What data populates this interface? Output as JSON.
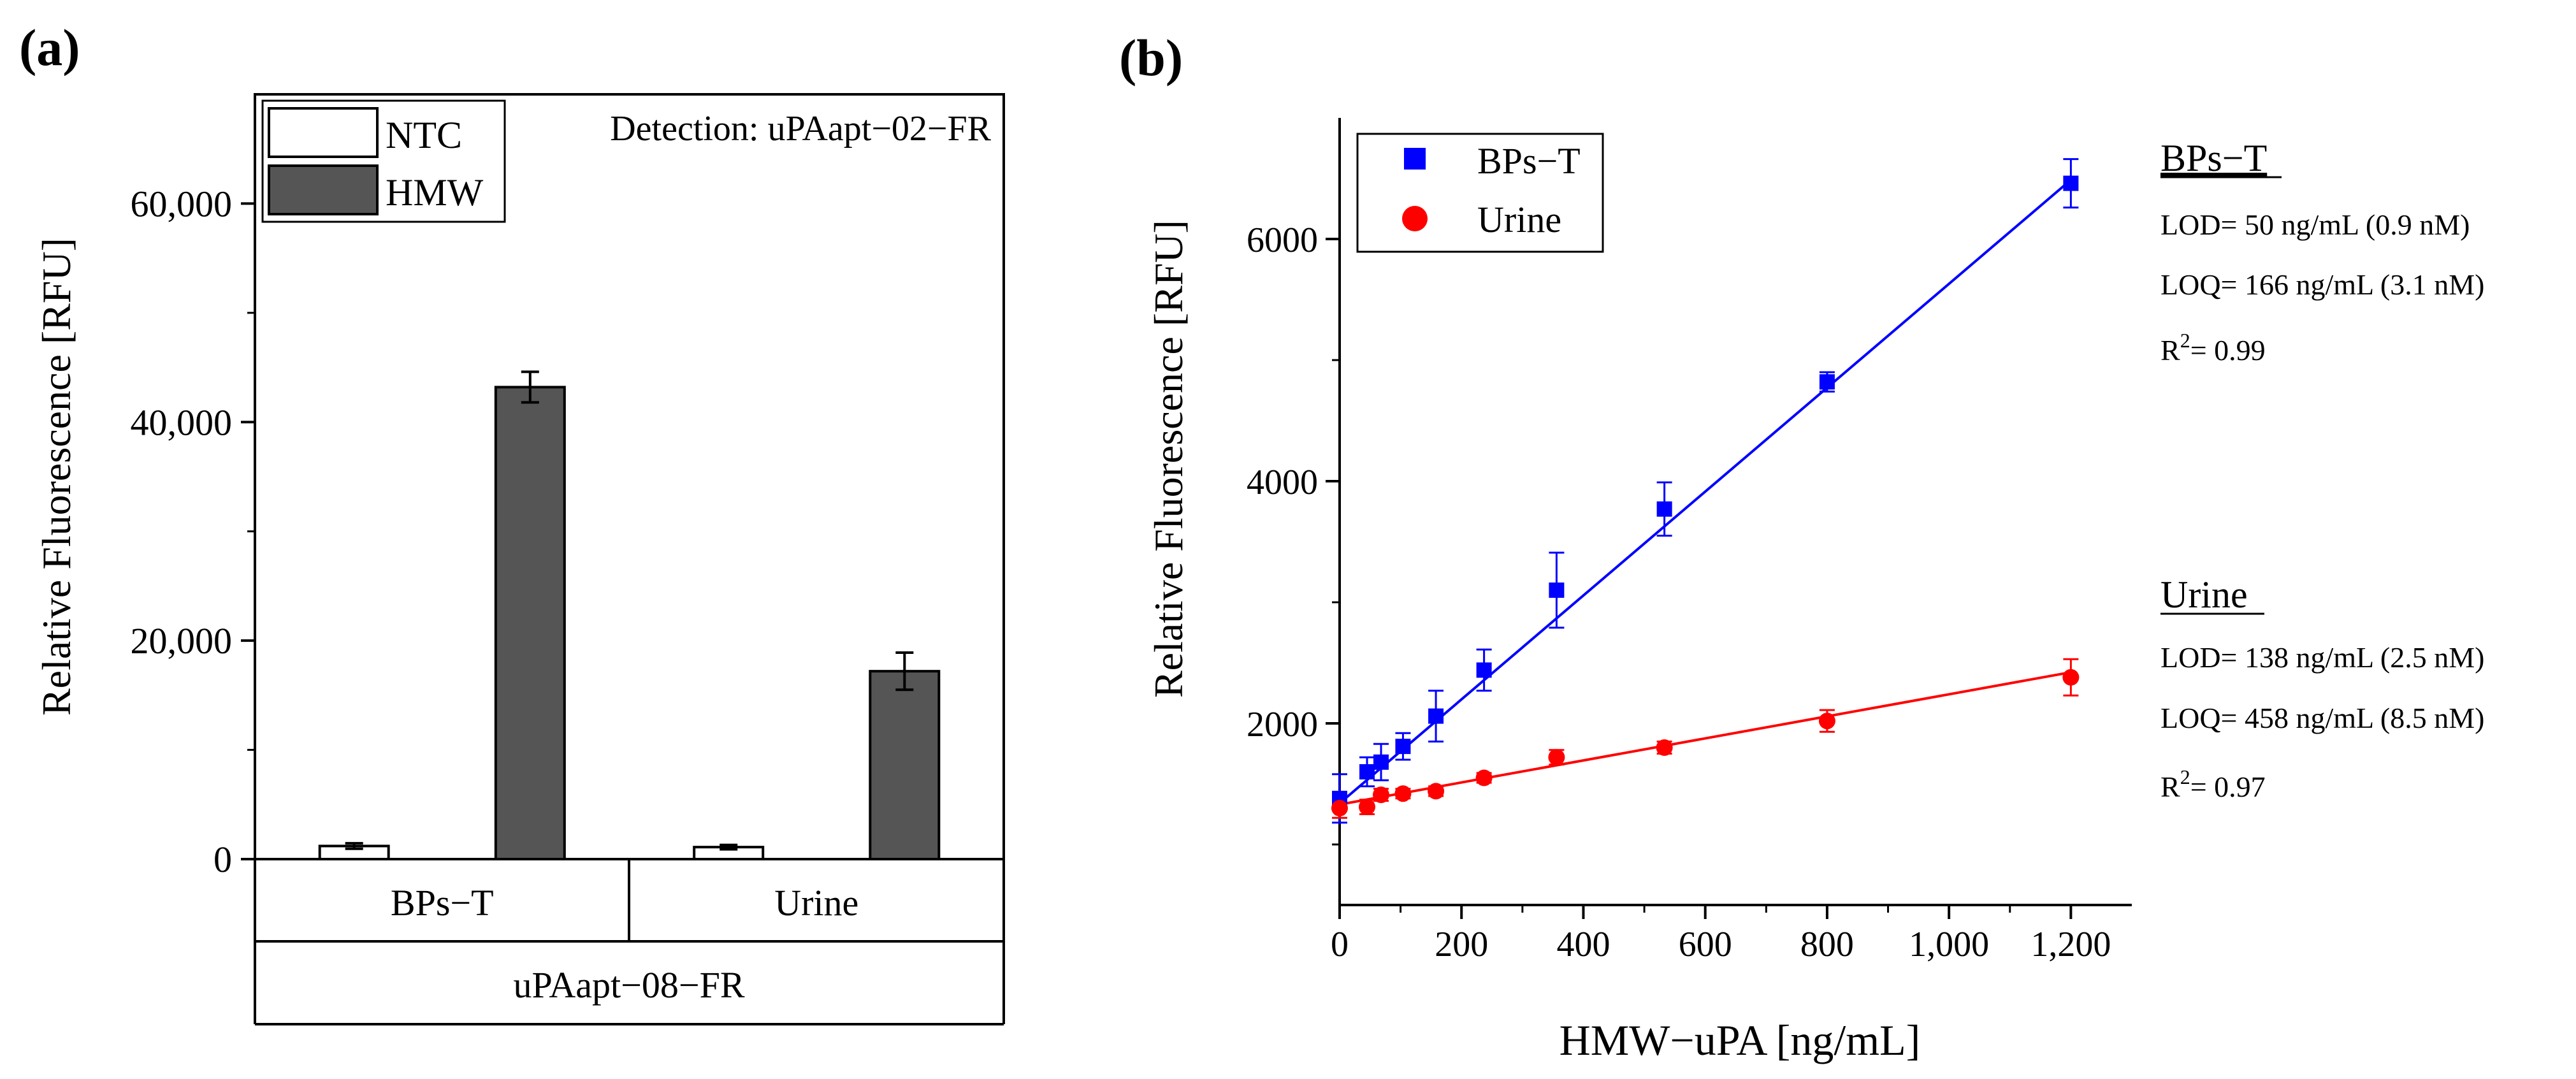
{
  "chart_data": [
    {
      "type": "bar",
      "panel_label": "(a)",
      "title": "",
      "ylabel": "Relative Fluorescence [RFU]",
      "ylim": [
        0,
        70000
      ],
      "yticks": [
        0,
        20000,
        40000,
        60000
      ],
      "ytick_labels": [
        "0",
        "20,000",
        "40,000",
        "60,000"
      ],
      "annotation": "Detection: uPAapt−02−FR",
      "legend_position": "top-left",
      "categories": [
        "BPs−T",
        "Urine"
      ],
      "category_group": "uPAapt−08−FR",
      "series": [
        {
          "name": "NTC",
          "color": "#ffffff",
          "values": [
            1200,
            1100
          ],
          "errors": [
            250,
            200
          ]
        },
        {
          "name": "HMW",
          "color": "#555555",
          "values": [
            43200,
            17200
          ],
          "errors": [
            1400,
            1700
          ]
        }
      ]
    },
    {
      "type": "scatter",
      "panel_label": "(b)",
      "title": "",
      "xlabel": "HMW−uPA [ng/mL]",
      "ylabel": "Relative Fluorescence [RFU]",
      "xlim": [
        0,
        1300
      ],
      "ylim": [
        500,
        7000
      ],
      "xticks": [
        0,
        200,
        400,
        600,
        800,
        1000,
        1200
      ],
      "xtick_labels": [
        "0",
        "200",
        "400",
        "600",
        "800",
        "1,000",
        "1,200"
      ],
      "yticks": [
        2000,
        4000,
        6000
      ],
      "ytick_labels": [
        "2000",
        "4000",
        "6000"
      ],
      "legend_position": "top-left",
      "series": [
        {
          "name": "BPs−T",
          "color": "#0000ff",
          "marker": "square",
          "x": [
            0,
            45,
            68,
            104,
            158,
            237,
            356,
            533,
            800,
            1200
          ],
          "y": [
            1380,
            1600,
            1680,
            1810,
            2060,
            2440,
            3100,
            3770,
            4820,
            6460
          ],
          "errors": [
            200,
            120,
            150,
            110,
            210,
            170,
            310,
            220,
            80,
            200
          ],
          "fit": {
            "slope": 4.29,
            "intercept": 1340
          },
          "stats": {
            "header": "BPs−T",
            "lod": "LOD= 50 ng/mL (0.9 nM)",
            "loq": "LOQ= 166 ng/mL (3.1 nM)",
            "r2_prefix": "R",
            "r2_exp": "2",
            "r2_value": "= 0.99"
          }
        },
        {
          "name": "Urine",
          "color": "#ff0000",
          "marker": "circle",
          "x": [
            0,
            45,
            68,
            104,
            158,
            237,
            356,
            533,
            800,
            1200
          ],
          "y": [
            1300,
            1310,
            1410,
            1420,
            1440,
            1550,
            1720,
            1800,
            2020,
            2380
          ],
          "errors": [
            80,
            60,
            50,
            40,
            40,
            40,
            60,
            50,
            90,
            150
          ],
          "fit": {
            "slope": 0.91,
            "intercept": 1330
          },
          "stats": {
            "header": "Urine",
            "lod": "LOD= 138 ng/mL (2.5 nM)",
            "loq": "LOQ= 458 ng/mL (8.5 nM)",
            "r2_prefix": "R",
            "r2_exp": "2",
            "r2_value": "= 0.97"
          }
        }
      ]
    }
  ]
}
